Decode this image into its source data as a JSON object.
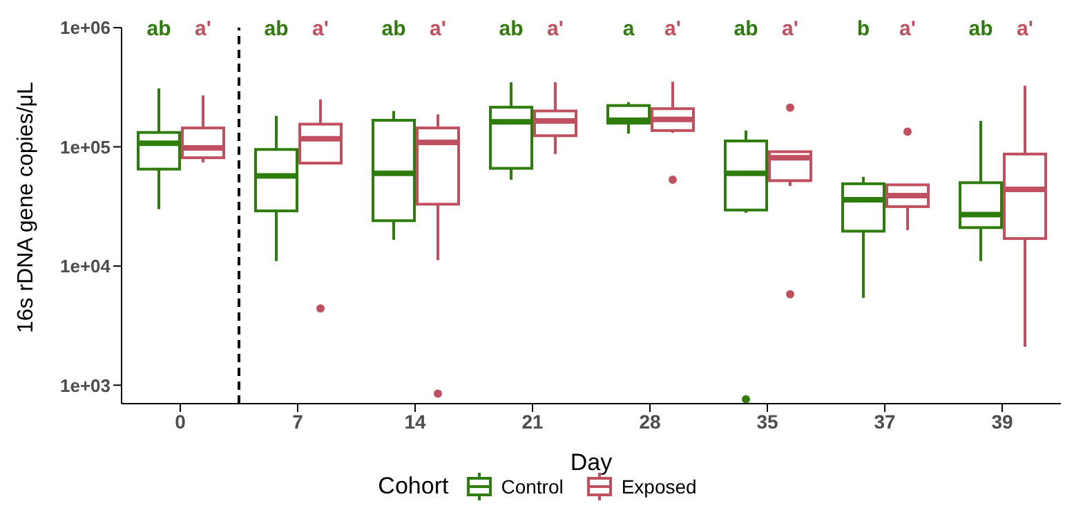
{
  "chart_data": {
    "type": "box",
    "xlabel": "Day",
    "ylabel": "16s rDNA gene copies/μL",
    "legend_title": "Cohort",
    "legend": "bottom",
    "log": "y",
    "grid": false,
    "categories": [
      "0",
      "7",
      "14",
      "21",
      "28",
      "35",
      "37",
      "39"
    ],
    "ylim": [
      700,
      1000000
    ],
    "yticks": [
      {
        "value": 1000,
        "label": "1e+03"
      },
      {
        "value": 10000,
        "label": "1e+04"
      },
      {
        "value": 100000,
        "label": "1e+05"
      },
      {
        "value": 1000000,
        "label": "1e+06"
      }
    ],
    "series": [
      {
        "name": "Control",
        "color": "#2e7d0c",
        "boxes": [
          {
            "low": 30000,
            "q1": 65000,
            "median": 107000,
            "q3": 132000,
            "high": 309000
          },
          {
            "low": 11000,
            "q1": 29000,
            "median": 57000,
            "q3": 95000,
            "high": 182000
          },
          {
            "low": 16600,
            "q1": 24000,
            "median": 60000,
            "q3": 167000,
            "high": 200000
          },
          {
            "low": 53000,
            "q1": 66000,
            "median": 162000,
            "q3": 215000,
            "high": 348000
          },
          {
            "low": 129000,
            "q1": 158000,
            "median": 167000,
            "q3": 222000,
            "high": 237000
          },
          {
            "low": 28000,
            "q1": 29500,
            "median": 60000,
            "q3": 112000,
            "high": 137000,
            "outliers": [
              760
            ]
          },
          {
            "low": 5400,
            "q1": 19600,
            "median": 36000,
            "q3": 49000,
            "high": 56000
          },
          {
            "low": 11000,
            "q1": 21000,
            "median": 27000,
            "q3": 50000,
            "high": 165000
          }
        ]
      },
      {
        "name": "Exposed",
        "color": "#c0505f",
        "boxes": [
          {
            "low": 74000,
            "q1": 81000,
            "median": 98000,
            "q3": 144000,
            "high": 270000
          },
          {
            "low": 73000,
            "q1": 73000,
            "median": 117000,
            "q3": 155000,
            "high": 250000,
            "outliers": [
              4400
            ]
          },
          {
            "low": 11200,
            "q1": 33000,
            "median": 109000,
            "q3": 144000,
            "high": 187000,
            "outliers": [
              850
            ]
          },
          {
            "low": 87000,
            "q1": 124000,
            "median": 165000,
            "q3": 200000,
            "high": 348000
          },
          {
            "low": 131000,
            "q1": 137000,
            "median": 170000,
            "q3": 209000,
            "high": 352000,
            "outliers": [
              53000
            ]
          },
          {
            "low": 47000,
            "q1": 52000,
            "median": 81000,
            "q3": 91000,
            "high": 91000,
            "outliers": [
              213000,
              5800
            ]
          },
          {
            "low": 20000,
            "q1": 31500,
            "median": 39000,
            "q3": 48000,
            "high": 48000,
            "outliers": [
              134000
            ]
          },
          {
            "low": 2100,
            "q1": 17000,
            "median": 44000,
            "q3": 87000,
            "high": 325000
          }
        ]
      }
    ],
    "annotations": [
      "ab",
      "a'",
      "ab",
      "a'",
      "ab",
      "a'",
      "ab",
      "a'",
      "a",
      "a'",
      "ab",
      "a'",
      "b",
      "a'",
      "ab",
      "a'"
    ]
  }
}
